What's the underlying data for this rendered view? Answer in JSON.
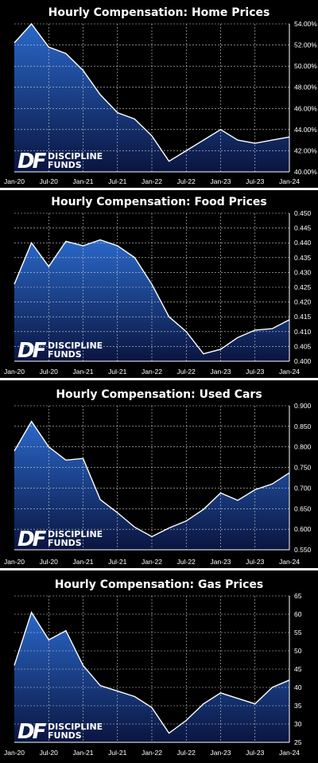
{
  "logo": {
    "mark": "DF",
    "line1": "DISCIPLINE",
    "line2": "FUNDS"
  },
  "colors": {
    "background": "#000000",
    "fill_top": "#2a68c9",
    "fill_bottom": "#0a1540",
    "line": "#ffffff",
    "grid": "#d0d0d0"
  },
  "chart_data": [
    {
      "type": "area",
      "title": "Hourly Compensation: Home Prices",
      "x": [
        "Jan-20",
        "Apr-20",
        "Jul-20",
        "Oct-20",
        "Jan-21",
        "Apr-21",
        "Jul-21",
        "Oct-21",
        "Jan-22",
        "Apr-22",
        "Jul-22",
        "Oct-22",
        "Jan-23",
        "Apr-23",
        "Jul-23",
        "Oct-23",
        "Jan-24"
      ],
      "values": [
        52.2,
        54.0,
        51.8,
        51.2,
        49.6,
        47.3,
        45.6,
        45.0,
        43.4,
        41.0,
        42.0,
        43.0,
        44.0,
        43.0,
        42.7,
        43.0,
        43.3
      ],
      "ylim": [
        40,
        54
      ],
      "yticks": [
        "40.00%",
        "42.00%",
        "44.00%",
        "46.00%",
        "48.00%",
        "50.00%",
        "52.00%",
        "54.00%"
      ],
      "ytick_values": [
        40,
        42,
        44,
        46,
        48,
        50,
        52,
        54
      ],
      "xticks": [
        "Jan-20",
        "Jul-20",
        "Jan-21",
        "Jul-21",
        "Jan-22",
        "Jul-22",
        "Jan-23",
        "Jul-23",
        "Jan-24"
      ],
      "grid": true
    },
    {
      "type": "area",
      "title": "Hourly Compensation: Food Prices",
      "x": [
        "Jan-20",
        "Apr-20",
        "Jul-20",
        "Oct-20",
        "Jan-21",
        "Apr-21",
        "Jul-21",
        "Oct-21",
        "Jan-22",
        "Apr-22",
        "Jul-22",
        "Oct-22",
        "Jan-23",
        "Apr-23",
        "Jul-23",
        "Oct-23",
        "Jan-24"
      ],
      "values": [
        0.426,
        0.44,
        0.432,
        0.4405,
        0.439,
        0.441,
        0.439,
        0.435,
        0.426,
        0.415,
        0.41,
        0.4025,
        0.404,
        0.408,
        0.4105,
        0.411,
        0.414
      ],
      "ylim": [
        0.4,
        0.45
      ],
      "yticks": [
        "0.400",
        "0.405",
        "0.410",
        "0.415",
        "0.420",
        "0.425",
        "0.430",
        "0.435",
        "0.440",
        "0.445",
        "0.450"
      ],
      "ytick_values": [
        0.4,
        0.405,
        0.41,
        0.415,
        0.42,
        0.425,
        0.43,
        0.435,
        0.44,
        0.445,
        0.45
      ],
      "xticks": [
        "Jan-20",
        "Jul-20",
        "Jan-21",
        "Jul-21",
        "Jan-22",
        "Jul-22",
        "Jan-23",
        "Jul-23",
        "Jan-24"
      ],
      "grid": true
    },
    {
      "type": "area",
      "title": "Hourly Compensation: Used Cars",
      "x": [
        "Jan-20",
        "Apr-20",
        "Jul-20",
        "Oct-20",
        "Jan-21",
        "Apr-21",
        "Jul-21",
        "Oct-21",
        "Jan-22",
        "Apr-22",
        "Jul-22",
        "Oct-22",
        "Jan-23",
        "Apr-23",
        "Jul-23",
        "Oct-23",
        "Jan-24"
      ],
      "values": [
        0.79,
        0.862,
        0.8,
        0.768,
        0.772,
        0.672,
        0.64,
        0.605,
        0.582,
        0.603,
        0.62,
        0.648,
        0.688,
        0.67,
        0.696,
        0.71,
        0.737
      ],
      "ylim": [
        0.55,
        0.9
      ],
      "yticks": [
        "0.550",
        "0.600",
        "0.650",
        "0.700",
        "0.750",
        "0.800",
        "0.850",
        "0.900"
      ],
      "ytick_values": [
        0.55,
        0.6,
        0.65,
        0.7,
        0.75,
        0.8,
        0.85,
        0.9
      ],
      "xticks": [
        "Jan-20",
        "Jul-20",
        "Jan-21",
        "Jul-21",
        "Jan-22",
        "Jul-22",
        "Jan-23",
        "Jul-23",
        "Jan-24"
      ],
      "grid": true
    },
    {
      "type": "area",
      "title": "Hourly Compensation: Gas Prices",
      "x": [
        "Jan-20",
        "Apr-20",
        "Jul-20",
        "Oct-20",
        "Jan-21",
        "Apr-21",
        "Jul-21",
        "Oct-21",
        "Jan-22",
        "Apr-22",
        "Jul-22",
        "Oct-22",
        "Jan-23",
        "Apr-23",
        "Jul-23",
        "Oct-23",
        "Jan-24"
      ],
      "values": [
        46,
        60.5,
        53,
        55.5,
        46,
        40.5,
        39,
        37.5,
        34.5,
        27.5,
        31,
        35.5,
        38.5,
        37,
        35.5,
        40,
        42
      ],
      "ylim": [
        25,
        65
      ],
      "yticks": [
        "25",
        "30",
        "35",
        "40",
        "45",
        "50",
        "55",
        "60",
        "65"
      ],
      "ytick_values": [
        25,
        30,
        35,
        40,
        45,
        50,
        55,
        60,
        65
      ],
      "xticks": [
        "Jan-20",
        "Jul-20",
        "Jan-21",
        "Jul-21",
        "Jan-22",
        "Jul-22",
        "Jan-23",
        "Jul-23",
        "Jan-24"
      ],
      "grid": true
    }
  ]
}
